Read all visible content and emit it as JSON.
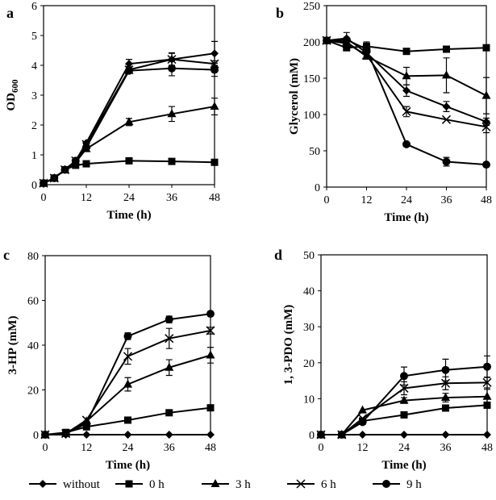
{
  "chart_data": {
    "type": "line",
    "legend": {
      "placement": "bottom",
      "entries": [
        {
          "key": "without",
          "label": "without",
          "marker": "diamond"
        },
        {
          "key": "h0",
          "label": "0 h",
          "marker": "square"
        },
        {
          "key": "h3",
          "label": "3 h",
          "marker": "triangle"
        },
        {
          "key": "h6",
          "label": "6 h",
          "marker": "x"
        },
        {
          "key": "h9",
          "label": "9 h",
          "marker": "circle"
        }
      ]
    },
    "panels": [
      {
        "label": "a",
        "xlabel": "Time (h)",
        "ylabel": "OD",
        "ylabel_sub": "600",
        "xlim": [
          0,
          48
        ],
        "ylim": [
          0,
          6
        ],
        "xticks": [
          0,
          12,
          24,
          36,
          48
        ],
        "yticks": [
          0,
          1,
          2,
          3,
          4,
          5,
          6
        ],
        "x": [
          0,
          3,
          6,
          9,
          12,
          24,
          36,
          48
        ],
        "series": [
          {
            "key": "without",
            "values": [
              0.05,
              0.22,
              0.5,
              0.8,
              1.4,
              4.05,
              4.2,
              4.4
            ],
            "err": [
              0,
              0,
              0,
              0,
              0.05,
              0.15,
              0.2,
              0.4
            ]
          },
          {
            "key": "h0",
            "values": [
              0.05,
              0.22,
              0.5,
              0.65,
              0.7,
              0.8,
              0.78,
              0.75
            ],
            "err": [
              0,
              0,
              0,
              0,
              0,
              0,
              0,
              0
            ]
          },
          {
            "key": "h3",
            "values": [
              0.05,
              0.22,
              0.5,
              0.75,
              1.2,
              2.1,
              2.37,
              2.62
            ],
            "err": [
              0,
              0,
              0,
              0,
              0,
              0.12,
              0.25,
              0.28
            ]
          },
          {
            "key": "h6",
            "values": [
              0.05,
              0.22,
              0.5,
              0.8,
              1.35,
              3.85,
              4.2,
              4.05
            ],
            "err": [
              0,
              0,
              0,
              0,
              0,
              0.1,
              0.22,
              0.1
            ]
          },
          {
            "key": "h9",
            "values": [
              0.05,
              0.22,
              0.5,
              0.8,
              1.25,
              3.82,
              3.9,
              3.85
            ],
            "err": [
              0,
              0,
              0,
              0,
              0,
              0.05,
              0.25,
              0.22
            ]
          }
        ]
      },
      {
        "label": "b",
        "xlabel": "Time (h)",
        "ylabel": "Glycerol (mM)",
        "xlim": [
          0,
          48
        ],
        "ylim": [
          0,
          250
        ],
        "xticks": [
          0,
          12,
          24,
          36,
          48
        ],
        "yticks": [
          0,
          50,
          100,
          150,
          200,
          250
        ],
        "x": [
          0,
          6,
          12,
          24,
          36,
          48
        ],
        "series": [
          {
            "key": "without",
            "values": [
              202,
              205,
              185,
              133,
              111,
              90
            ],
            "err": [
              0,
              8,
              0,
              8,
              7,
              5
            ]
          },
          {
            "key": "h0",
            "values": [
              202,
              192,
              194,
              187,
              190,
              192
            ],
            "err": [
              0,
              0,
              0,
              0,
              0,
              0
            ]
          },
          {
            "key": "h3",
            "values": [
              202,
              200,
              180,
              153,
              154,
              126
            ],
            "err": [
              0,
              0,
              0,
              12,
              24,
              25
            ]
          },
          {
            "key": "h6",
            "values": [
              202,
              198,
              182,
              104,
              93,
              83
            ],
            "err": [
              0,
              0,
              0,
              7,
              0,
              8
            ]
          },
          {
            "key": "h9",
            "values": [
              202,
              203,
              190,
              59,
              35,
              31
            ],
            "err": [
              0,
              0,
              10,
              0,
              6,
              0
            ]
          }
        ]
      },
      {
        "label": "c",
        "xlabel": "Time (h)",
        "ylabel": "3-HP (mM)",
        "xlim": [
          0,
          48
        ],
        "ylim": [
          0,
          80
        ],
        "xticks": [
          0,
          12,
          24,
          36,
          48
        ],
        "yticks": [
          0,
          20,
          40,
          60,
          80
        ],
        "x": [
          0,
          6,
          12,
          24,
          36,
          48
        ],
        "series": [
          {
            "key": "without",
            "values": [
              0,
              0,
              0,
              0,
              0,
              0
            ],
            "err": [
              0,
              0,
              0,
              0,
              0,
              0
            ]
          },
          {
            "key": "h0",
            "values": [
              0,
              1,
              3.5,
              6.5,
              9.8,
              12
            ],
            "err": [
              0,
              0,
              0,
              0,
              0,
              0
            ]
          },
          {
            "key": "h3",
            "values": [
              0,
              0.5,
              6,
              22.5,
              30,
              35.5
            ],
            "err": [
              0,
              0,
              0,
              3,
              3.5,
              3.5
            ]
          },
          {
            "key": "h6",
            "values": [
              0,
              0.5,
              6.5,
              35,
              43,
              46.5
            ],
            "err": [
              0,
              0,
              0,
              3.5,
              4.5,
              1.5
            ]
          },
          {
            "key": "h9",
            "values": [
              0,
              0.5,
              5,
              44,
              51.5,
              54
            ],
            "err": [
              0,
              0,
              0,
              1.5,
              1.5,
              0
            ]
          }
        ]
      },
      {
        "label": "d",
        "xlabel": "Time (h)",
        "ylabel": "1, 3-PDO (mM)",
        "xlim": [
          0,
          48
        ],
        "ylim": [
          0,
          50
        ],
        "xticks": [
          0,
          12,
          24,
          36,
          48
        ],
        "yticks": [
          0,
          10,
          20,
          30,
          40,
          50
        ],
        "x": [
          0,
          6,
          12,
          24,
          36,
          48
        ],
        "series": [
          {
            "key": "without",
            "values": [
              0,
              0,
              0,
              0,
              0,
              0
            ],
            "err": [
              0,
              0,
              0,
              0,
              0,
              0
            ]
          },
          {
            "key": "h0",
            "values": [
              0,
              0,
              3.8,
              5.5,
              7.4,
              8.2
            ],
            "err": [
              0,
              0,
              0,
              0,
              0,
              0
            ]
          },
          {
            "key": "h3",
            "values": [
              0,
              0,
              6.8,
              9.5,
              10.3,
              10.6
            ],
            "err": [
              0,
              0,
              0,
              0.8,
              1.2,
              2
            ]
          },
          {
            "key": "h6",
            "values": [
              0,
              0,
              4.5,
              12.9,
              14.3,
              14.5
            ],
            "err": [
              0,
              0,
              0,
              1.8,
              1.8,
              1.5
            ]
          },
          {
            "key": "h9",
            "values": [
              0,
              0,
              3.5,
              16.3,
              18,
              18.9
            ],
            "err": [
              0,
              0,
              0,
              2.5,
              3,
              3
            ]
          }
        ]
      }
    ]
  }
}
